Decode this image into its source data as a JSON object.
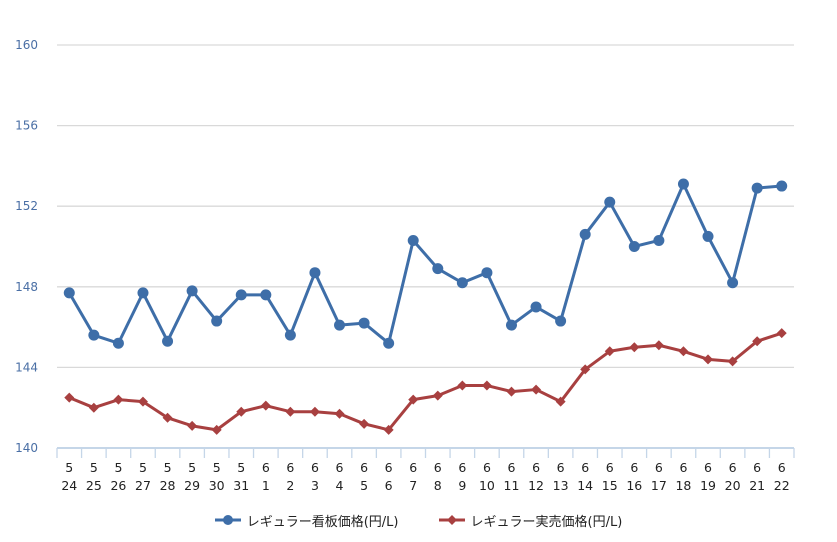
{
  "chart_data": {
    "type": "line",
    "title": "",
    "xlabel": "",
    "ylabel": "",
    "ylim": [
      140,
      160
    ],
    "yticks": [
      140,
      144,
      148,
      152,
      156,
      160
    ],
    "grid": true,
    "legend_position": "bottom",
    "categories": [
      {
        "month": "5",
        "day": "24"
      },
      {
        "month": "5",
        "day": "25"
      },
      {
        "month": "5",
        "day": "26"
      },
      {
        "month": "5",
        "day": "27"
      },
      {
        "month": "5",
        "day": "28"
      },
      {
        "month": "5",
        "day": "29"
      },
      {
        "month": "5",
        "day": "30"
      },
      {
        "month": "5",
        "day": "31"
      },
      {
        "month": "6",
        "day": "1"
      },
      {
        "month": "6",
        "day": "2"
      },
      {
        "month": "6",
        "day": "3"
      },
      {
        "month": "6",
        "day": "4"
      },
      {
        "month": "6",
        "day": "5"
      },
      {
        "month": "6",
        "day": "6"
      },
      {
        "month": "6",
        "day": "7"
      },
      {
        "month": "6",
        "day": "8"
      },
      {
        "month": "6",
        "day": "9"
      },
      {
        "month": "6",
        "day": "10"
      },
      {
        "month": "6",
        "day": "11"
      },
      {
        "month": "6",
        "day": "12"
      },
      {
        "month": "6",
        "day": "13"
      },
      {
        "month": "6",
        "day": "14"
      },
      {
        "month": "6",
        "day": "15"
      },
      {
        "month": "6",
        "day": "16"
      },
      {
        "month": "6",
        "day": "17"
      },
      {
        "month": "6",
        "day": "18"
      },
      {
        "month": "6",
        "day": "19"
      },
      {
        "month": "6",
        "day": "20"
      },
      {
        "month": "6",
        "day": "21"
      },
      {
        "month": "6",
        "day": "22"
      }
    ],
    "series": [
      {
        "name": "レギュラー看板価格(円/L)",
        "color": "#3e6ea8",
        "marker": "circle",
        "values": [
          147.7,
          145.6,
          145.2,
          147.7,
          145.3,
          147.8,
          146.3,
          147.6,
          147.6,
          145.6,
          148.7,
          146.1,
          146.2,
          145.2,
          150.3,
          148.9,
          148.2,
          148.7,
          146.1,
          147.0,
          146.3,
          150.6,
          152.2,
          150.0,
          150.3,
          153.1,
          150.5,
          148.2,
          152.9,
          153.0
        ]
      },
      {
        "name": "レギュラー実売価格(円/L)",
        "color": "#a84040",
        "marker": "diamond",
        "values": [
          142.5,
          142.0,
          142.4,
          142.3,
          141.5,
          141.1,
          140.9,
          141.8,
          142.1,
          141.8,
          141.8,
          141.7,
          141.2,
          140.9,
          142.4,
          142.6,
          143.1,
          143.1,
          142.8,
          142.9,
          142.3,
          143.9,
          144.8,
          145.0,
          145.1,
          144.8,
          144.4,
          144.3,
          145.3,
          145.7
        ]
      }
    ]
  },
  "legend": {
    "items": [
      {
        "label": "レギュラー看板価格(円/L)",
        "color": "#3e6ea8",
        "marker": "circle"
      },
      {
        "label": "レギュラー実売価格(円/L)",
        "color": "#a84040",
        "marker": "diamond"
      }
    ]
  },
  "style": {
    "grid_color": "#d9d9d9",
    "axis_color": "#c5d6e8",
    "ytick_color": "#4a6fa5"
  }
}
